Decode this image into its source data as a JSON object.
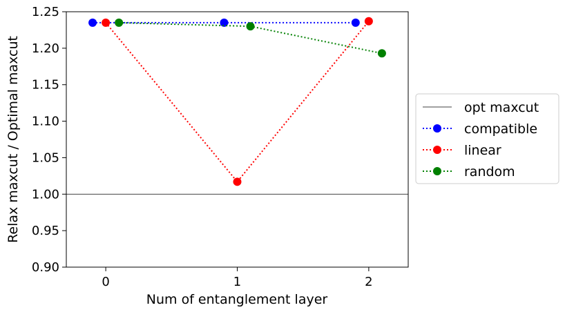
{
  "chart_data": {
    "type": "line",
    "title": "",
    "xlabel": "Num of entanglement layer",
    "ylabel": "Relax maxcut / Optimal maxcut",
    "x_ticks": [
      0,
      1,
      2
    ],
    "x_tick_labels": [
      "0",
      "1",
      "2"
    ],
    "xlim": [
      -0.3,
      2.3
    ],
    "y_ticks": [
      0.9,
      0.95,
      1.0,
      1.05,
      1.1,
      1.15,
      1.2,
      1.25
    ],
    "y_tick_labels": [
      "0.90",
      "0.95",
      "1.00",
      "1.05",
      "1.10",
      "1.15",
      "1.20",
      "1.25"
    ],
    "ylim": [
      0.9,
      1.25
    ],
    "grid": false,
    "legend_position": "outside right",
    "reference_line": {
      "name": "opt maxcut",
      "y": 1.0,
      "color": "#000000"
    },
    "series": [
      {
        "name": "compatible",
        "color": "#0000ff",
        "x": [
          -0.1,
          0.9,
          1.9
        ],
        "y": [
          1.235,
          1.235,
          1.235
        ]
      },
      {
        "name": "linear",
        "color": "#ff0000",
        "x": [
          0,
          1,
          2
        ],
        "y": [
          1.235,
          1.017,
          1.237
        ]
      },
      {
        "name": "random",
        "color": "#008000",
        "x": [
          0.1,
          1.1,
          2.1
        ],
        "y": [
          1.235,
          1.23,
          1.193
        ]
      }
    ]
  }
}
